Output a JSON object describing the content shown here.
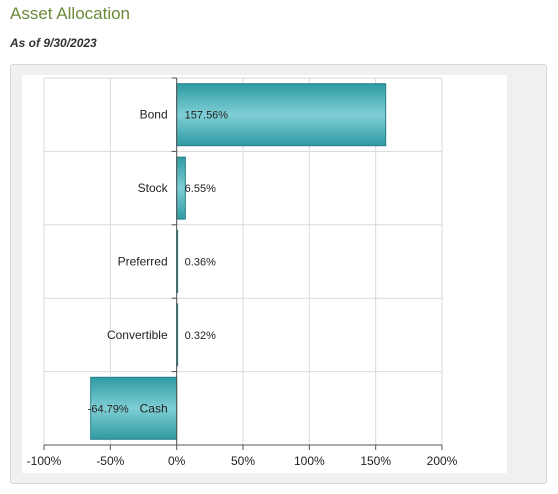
{
  "header": {
    "title": "Asset Allocation",
    "as_of": "As of 9/30/2023"
  },
  "colors": {
    "bar_fill_dark": "#2f9aa3",
    "bar_fill_light": "#7fcfd5",
    "bar_stroke": "#2a7f88",
    "grid": "#d9d9d9",
    "axis": "#555555",
    "text": "#222222"
  },
  "chart_data": {
    "type": "bar",
    "orientation": "horizontal",
    "categories": [
      "Bond",
      "Stock",
      "Preferred",
      "Convertible",
      "Cash"
    ],
    "values": [
      157.56,
      6.55,
      0.36,
      0.32,
      -64.79
    ],
    "value_labels": [
      "157.56%",
      "6.55%",
      "0.36%",
      "0.32%",
      "-64.79%"
    ],
    "xlim": [
      -100,
      200
    ],
    "xticks": [
      -100,
      -50,
      0,
      50,
      100,
      150,
      200
    ],
    "xtick_labels": [
      "-100%",
      "-50%",
      "0%",
      "50%",
      "100%",
      "150%",
      "200%"
    ],
    "grid": true
  }
}
